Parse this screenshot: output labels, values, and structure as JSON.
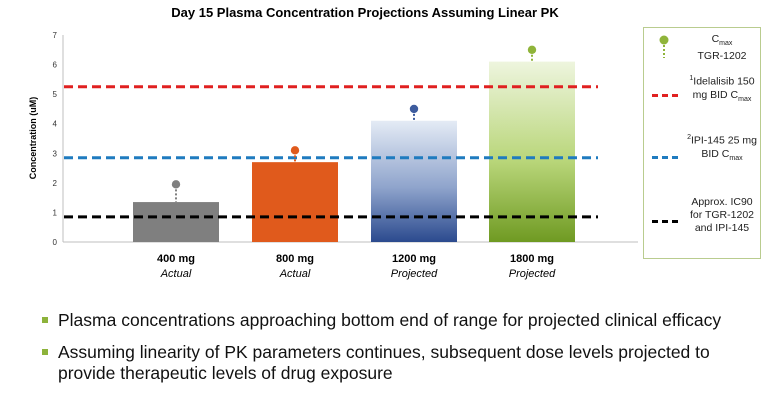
{
  "chart_data": {
    "type": "bar",
    "title": "Day 15 Plasma Concentration Projections Assuming Linear PK",
    "ylabel": "Concentration (uM)",
    "xlabel": "",
    "ylim": [
      0,
      7
    ],
    "yticks": [
      "0",
      "1",
      "2",
      "3",
      "4",
      "5",
      "6",
      "7"
    ],
    "grid": false,
    "categories": [
      {
        "dose": "400 mg",
        "status": "Actual"
      },
      {
        "dose": "800 mg",
        "status": "Actual"
      },
      {
        "dose": "1200 mg",
        "status": "Projected"
      },
      {
        "dose": "1800 mg",
        "status": "Projected"
      }
    ],
    "values": [
      1.35,
      2.7,
      4.1,
      6.1
    ],
    "cmax": [
      1.95,
      3.1,
      4.5,
      6.5
    ],
    "bar_colors": [
      "#7f7f7f",
      "#e05a1c",
      "#3d5c9e",
      "#8fb43a"
    ],
    "reference_lines": [
      {
        "value": 5.25,
        "color": "#e02020"
      },
      {
        "value": 2.85,
        "color": "#1f7bbf"
      },
      {
        "value": 0.85,
        "color": "#000000"
      }
    ],
    "legend_position": "right",
    "legend": [
      {
        "line1": "C",
        "sub": "max",
        "line2": "TGR-1202",
        "color": "#8fb43a",
        "kind": "marker"
      },
      {
        "sup": "1",
        "text": "Idelalisib 150 mg BID C",
        "sub": "max",
        "color": "#e02020",
        "kind": "line"
      },
      {
        "sup": "2",
        "text": "IPI-145 25 mg BID C",
        "sub": "max",
        "color": "#1f7bbf",
        "kind": "line"
      },
      {
        "text": "Approx. IC90 for TGR-1202 and IPI-145",
        "color": "#000000",
        "kind": "line"
      }
    ]
  },
  "bullets": [
    "Plasma concentrations approaching bottom end of range for projected clinical efficacy",
    "Assuming linearity of PK parameters continues, subsequent dose levels projected to provide therapeutic levels of drug exposure"
  ]
}
